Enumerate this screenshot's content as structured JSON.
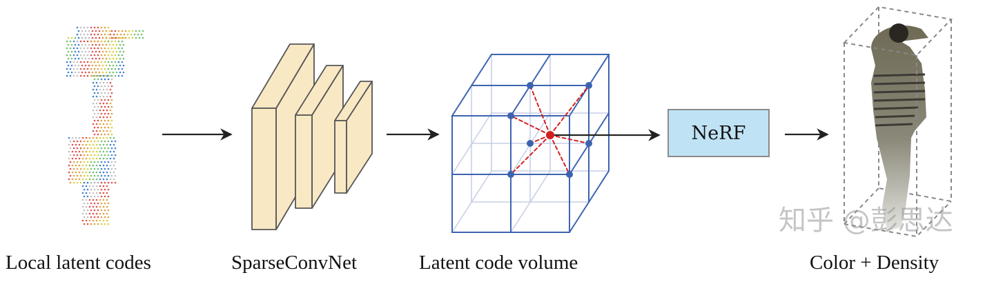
{
  "labels": {
    "input": "Local latent codes",
    "network": "SparseConvNet",
    "volume": "Latent code volume",
    "nerf": "NeRF",
    "output": "Color + Density"
  },
  "watermark": "知乎 @彭思达",
  "colors": {
    "block_fill": "#f8e8c4",
    "grid_blue": "#3d63b0",
    "grid_light": "#c5cde6",
    "vertex_dot": "#3d63b0",
    "query_point": "#d42020",
    "nerf_fill": "#bfe3f5",
    "arrow": "#222222"
  }
}
